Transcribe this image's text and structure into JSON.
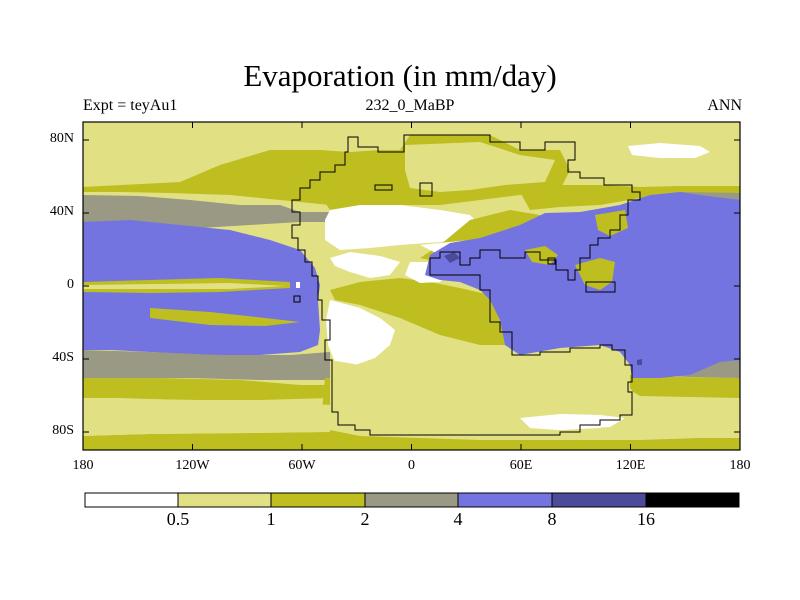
{
  "figure": {
    "title": "Evaporation (in mm/day)",
    "left_label": "Expt = teyAu1",
    "center_label": "232_0_MaBP",
    "right_label": "ANN"
  },
  "axes": {
    "y_ticks": [
      {
        "lat": 80,
        "label": "80N"
      },
      {
        "lat": 40,
        "label": "40N"
      },
      {
        "lat": 0,
        "label": "0"
      },
      {
        "lat": -40,
        "label": "40S"
      },
      {
        "lat": -80,
        "label": "80S"
      }
    ],
    "x_ticks": [
      {
        "lon": -180,
        "label": "180"
      },
      {
        "lon": -120,
        "label": "120W"
      },
      {
        "lon": -60,
        "label": "60W"
      },
      {
        "lon": 0,
        "label": "0"
      },
      {
        "lon": 60,
        "label": "60E"
      },
      {
        "lon": 120,
        "label": "120E"
      },
      {
        "lon": 180,
        "label": "180"
      }
    ]
  },
  "colorbar": {
    "colors": [
      "#ffffff",
      "#e1e184",
      "#bebe20",
      "#999984",
      "#7474e1",
      "#4b4b99",
      "#000000"
    ],
    "labels": [
      "0.5",
      "1",
      "2",
      "4",
      "8",
      "16"
    ]
  },
  "legend_colors": {
    "lt05": "#ffffff",
    "c05_1": "#e1e184",
    "c1_2": "#bebe20",
    "c2_4": "#999984",
    "c4_8": "#7474e1",
    "c8_16": "#4b4b99"
  }
}
